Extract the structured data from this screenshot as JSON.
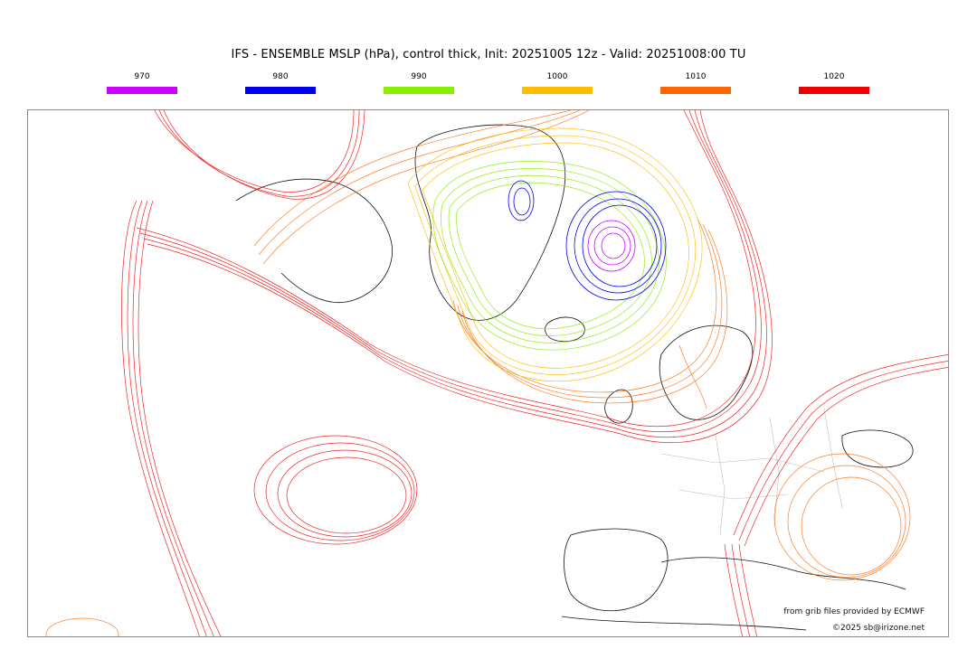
{
  "title": "IFS - ENSEMBLE MSLP (hPa), control thick, Init: 20251005 12z - Valid: 20251008:00 TU",
  "legend": [
    {
      "label": "970",
      "color": "#cc00ff"
    },
    {
      "label": "980",
      "color": "#0000ee"
    },
    {
      "label": "990",
      "color": "#88ee00"
    },
    {
      "label": "1000",
      "color": "#ffbb00"
    },
    {
      "label": "1010",
      "color": "#ff6600"
    },
    {
      "label": "1020",
      "color": "#ee0000"
    }
  ],
  "credits": {
    "source": "from grib files provided by ECMWF",
    "copyright": "©2025 sb@irizone.net"
  }
}
